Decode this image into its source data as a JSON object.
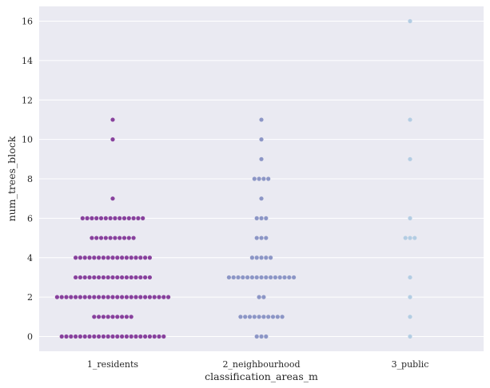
{
  "chart_data": {
    "type": "scatter",
    "subtype": "swarm",
    "title": "",
    "xlabel": "classification_areas_m",
    "ylabel": "num_trees_block",
    "categories": [
      "1_residents",
      "2_neighbourhood",
      "3_public"
    ],
    "ylim": [
      -0.8,
      16.7
    ],
    "yticks": [
      0,
      2,
      4,
      6,
      8,
      10,
      12,
      14,
      16
    ],
    "grid": true,
    "colors": [
      "#88419d",
      "#8c96c6",
      "#b3cde3"
    ],
    "background": "#eaeaf2",
    "counts": {
      "1_residents": {
        "0": 23,
        "1": 9,
        "2": 25,
        "3": 17,
        "4": 17,
        "5": 10,
        "6": 14,
        "7": 1,
        "10": 1,
        "11": 1
      },
      "2_neighbourhood": {
        "0": 3,
        "1": 10,
        "2": 2,
        "3": 15,
        "4": 5,
        "5": 3,
        "6": 3,
        "7": 1,
        "8": 4,
        "9": 1,
        "10": 1,
        "11": 1
      },
      "3_public": {
        "0": 1,
        "1": 1,
        "2": 1,
        "3": 1,
        "5": 3,
        "6": 1,
        "9": 1,
        "11": 1,
        "16": 1
      }
    }
  }
}
